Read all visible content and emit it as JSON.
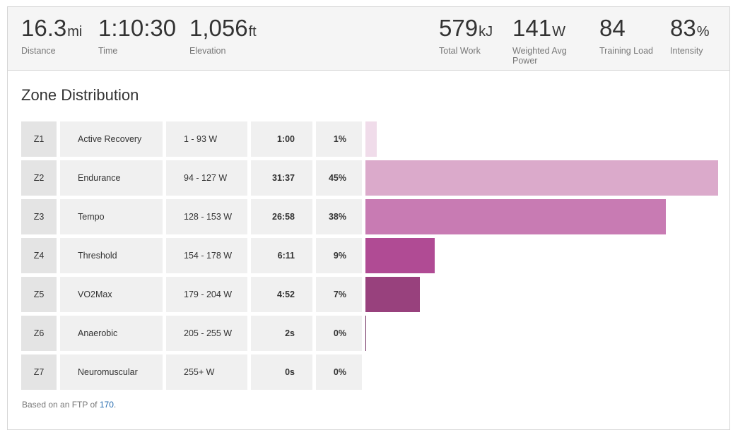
{
  "stats_left": [
    {
      "value": "16.3",
      "unit": "mi",
      "label": "Distance"
    },
    {
      "value": "1:10:30",
      "unit": "",
      "label": "Time"
    },
    {
      "value": "1,056",
      "unit": "ft",
      "label": "Elevation"
    }
  ],
  "stats_right": [
    {
      "value": "579",
      "unit": "kJ",
      "label": "Total Work"
    },
    {
      "value": "141",
      "unit": "W",
      "label": "Weighted Avg Power"
    },
    {
      "value": "84",
      "unit": "",
      "label": "Training Load"
    },
    {
      "value": "83",
      "unit": "%",
      "label": "Intensity"
    }
  ],
  "section_title": "Zone Distribution",
  "zones": [
    {
      "zone": "Z1",
      "name": "Active Recovery",
      "range": "1 - 93 W",
      "time": "1:00",
      "percent": "1%",
      "share": 0.033,
      "color": "#f0dcea"
    },
    {
      "zone": "Z2",
      "name": "Endurance",
      "range": "94 - 127 W",
      "time": "31:37",
      "percent": "45%",
      "share": 1.0,
      "color": "#dbaacb"
    },
    {
      "zone": "Z3",
      "name": "Tempo",
      "range": "128 - 153 W",
      "time": "26:58",
      "percent": "38%",
      "share": 0.852,
      "color": "#c87bb3"
    },
    {
      "zone": "Z4",
      "name": "Threshold",
      "range": "154 - 178 W",
      "time": "6:11",
      "percent": "9%",
      "share": 0.196,
      "color": "#b04b94"
    },
    {
      "zone": "Z5",
      "name": "VO2Max",
      "range": "179 - 204 W",
      "time": "4:52",
      "percent": "7%",
      "share": 0.154,
      "color": "#98417d"
    },
    {
      "zone": "Z6",
      "name": "Anaerobic",
      "range": "205 - 255 W",
      "time": "2s",
      "percent": "0%",
      "share": 0.002,
      "color": "#6d2a5c"
    },
    {
      "zone": "Z7",
      "name": "Neuromuscular",
      "range": "255+ W",
      "time": "0s",
      "percent": "0%",
      "share": 0.0,
      "color": "#4d1e42"
    }
  ],
  "footnote": {
    "prefix": "Based on an FTP of ",
    "ftp": "170",
    "suffix": "."
  }
}
